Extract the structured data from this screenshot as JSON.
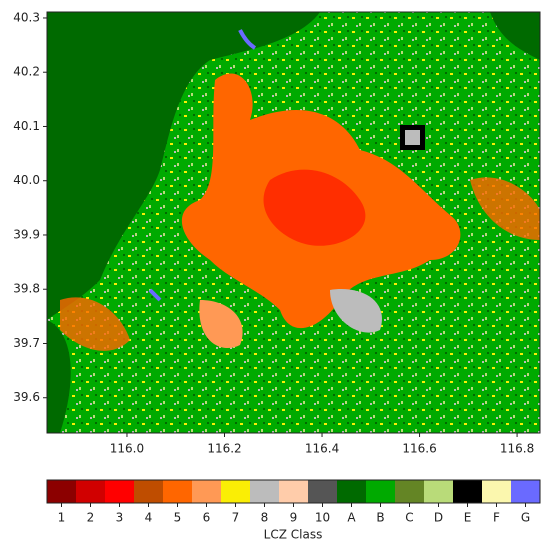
{
  "chart_data": {
    "type": "map",
    "xlim": [
      115.836,
      116.847
    ],
    "ylim": [
      39.535,
      40.311
    ],
    "xticks": [
      {
        "value": 116,
        "label": "116.0"
      },
      116.2,
      116.4,
      116.6,
      116.8
    ],
    "yticks": [
      39.6,
      39.7,
      39.8,
      39.9,
      {
        "value": 40,
        "label": "40.0"
      },
      40.1,
      40.2,
      40.3
    ],
    "colorbar_label": "LCZ Class",
    "classes": [
      "1",
      "2",
      "3",
      "4",
      "5",
      "6",
      "7",
      "8",
      "9",
      "10",
      "A",
      "B",
      "C",
      "D",
      "E",
      "F",
      "G"
    ],
    "colors": [
      "#8c0000",
      "#d10000",
      "#ff0000",
      "#bf4d00",
      "#ff6600",
      "#ff9955",
      "#faee05",
      "#bcbcbc",
      "#ffccaa",
      "#555555",
      "#006a00",
      "#00aa00",
      "#648525",
      "#b9db79",
      "#000000",
      "#fbf7ae",
      "#6a6aff"
    ]
  }
}
